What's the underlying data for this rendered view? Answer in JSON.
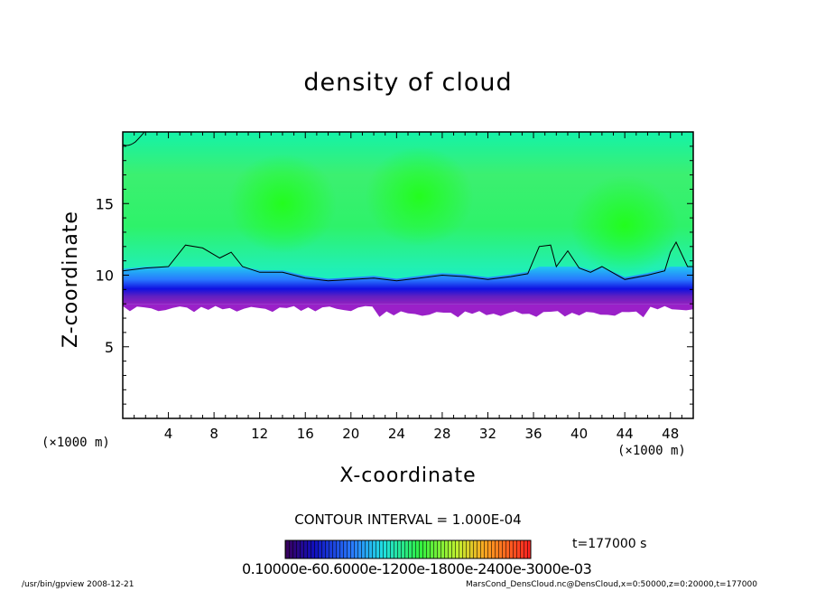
{
  "chart_data": {
    "type": "heatmap",
    "title": "density of cloud",
    "xlabel": "X-coordinate",
    "ylabel": "Z-coordinate",
    "x_unit": "(×1000 m)",
    "z_unit": "(×1000 m)",
    "xlim": [
      0,
      50
    ],
    "ylim": [
      0,
      20
    ],
    "x_ticks": [
      4,
      8,
      12,
      16,
      20,
      24,
      28,
      32,
      36,
      40,
      44,
      48
    ],
    "y_ticks": [
      5,
      10,
      15
    ],
    "contour_interval_text": "CONTOUR INTERVAL = 1.000E-04",
    "time_text": "t=177000 s",
    "colorbar_tick_text": "0.10000e-60.6000e-1200e-1800e-2400e-3000e-03",
    "cloud_base_z": 8.0,
    "contour_boundary_z": [
      [
        0,
        10.3
      ],
      [
        2,
        10.5
      ],
      [
        4,
        10.6
      ],
      [
        5.5,
        12.1
      ],
      [
        7,
        11.9
      ],
      [
        8.5,
        11.2
      ],
      [
        9.5,
        11.6
      ],
      [
        10.5,
        10.6
      ],
      [
        12,
        10.2
      ],
      [
        14,
        10.2
      ],
      [
        16,
        9.8
      ],
      [
        18,
        9.6
      ],
      [
        20,
        9.7
      ],
      [
        22,
        9.8
      ],
      [
        24,
        9.6
      ],
      [
        26,
        9.8
      ],
      [
        28,
        10.0
      ],
      [
        30,
        9.9
      ],
      [
        32,
        9.7
      ],
      [
        34,
        9.9
      ],
      [
        35.5,
        10.1
      ],
      [
        36.5,
        12.0
      ],
      [
        37.5,
        12.1
      ],
      [
        38,
        10.6
      ],
      [
        39,
        11.7
      ],
      [
        40,
        10.5
      ],
      [
        41,
        10.2
      ],
      [
        42,
        10.6
      ],
      [
        44,
        9.7
      ],
      [
        46,
        10.0
      ],
      [
        47.5,
        10.3
      ],
      [
        48,
        11.6
      ],
      [
        48.5,
        12.3
      ],
      [
        49.5,
        10.6
      ],
      [
        50,
        10.6
      ]
    ],
    "density_maxima": [
      {
        "x": 14,
        "z": 15
      },
      {
        "x": 26,
        "z": 15.5
      },
      {
        "x": 44,
        "z": 13.5
      }
    ]
  },
  "footer": {
    "left": "/usr/bin/gpview   2008-12-21",
    "right": "MarsCond_DensCloud.nc@DensCloud,x=0:50000,z=0:20000,t=177000"
  }
}
